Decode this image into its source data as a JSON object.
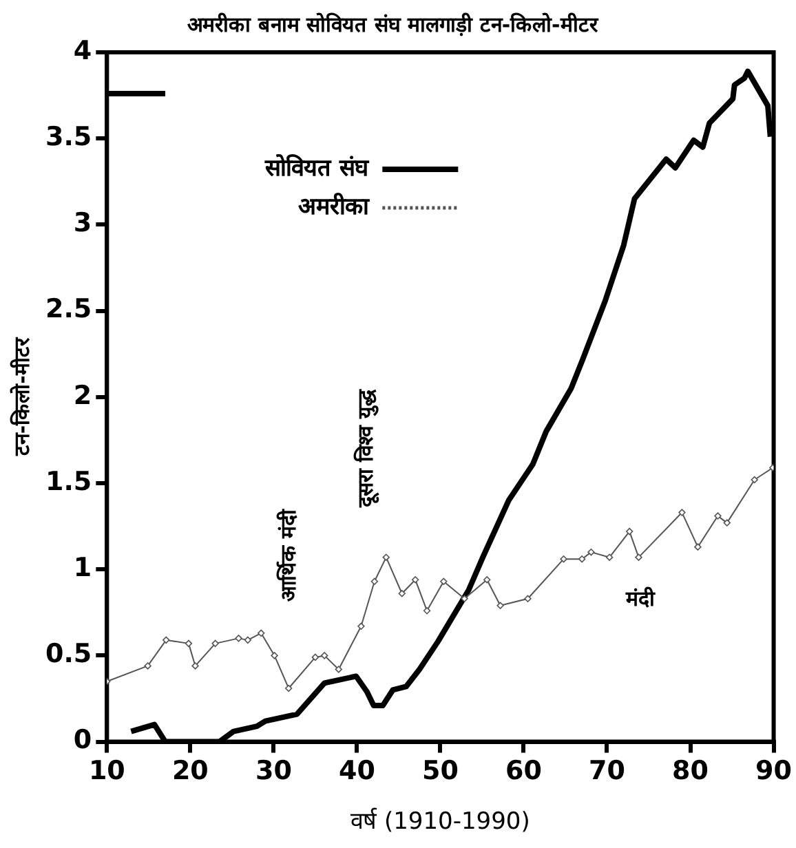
{
  "chart_data": {
    "type": "line",
    "title": "अमरीका बनाम सोवियत संघ मालगाड़ी टन-किलो-मीटर",
    "xlabel": "वर्ष (1910-1990)",
    "ylabel": "टन-किलो-मीटर",
    "xlim": [
      10,
      90
    ],
    "xticks": [
      10,
      20,
      30,
      40,
      50,
      60,
      70,
      80,
      90
    ],
    "ylim": [
      0,
      4
    ],
    "yticks": [
      0,
      0.5,
      1,
      1.5,
      2,
      2.5,
      3,
      3.5,
      4
    ],
    "grid": false,
    "legend": "top left",
    "series": [
      {
        "name": "सोवियत संघ",
        "color": "#000000",
        "marker": "none",
        "x": [
          12.9,
          15.7,
          17,
          23.5,
          25.2,
          28,
          29,
          32.8,
          36.1,
          39.9,
          41.2,
          42,
          43.1,
          44.3,
          45.9,
          47.5,
          49.7,
          53.4,
          55.1,
          58.2,
          61.1,
          62.7,
          65.7,
          67.1,
          69.8,
          72,
          73.3,
          77.1,
          78.2,
          80.4,
          81.5,
          82.3,
          85.1,
          85.3,
          86.5,
          86.9,
          89.3,
          89.6
        ],
        "values": [
          0.06,
          0.1,
          0,
          0,
          0.06,
          0.09,
          0.12,
          0.16,
          0.34,
          0.38,
          0.29,
          0.21,
          0.21,
          0.3,
          0.32,
          0.42,
          0.58,
          0.88,
          1.07,
          1.4,
          1.61,
          1.8,
          2.05,
          2.22,
          2.56,
          2.88,
          3.15,
          3.38,
          3.33,
          3.49,
          3.45,
          3.59,
          3.73,
          3.81,
          3.85,
          3.89,
          3.69,
          3.51
        ]
      },
      {
        "name": "अमरीका",
        "color": "#555555",
        "marker": "diamond",
        "x": [
          10,
          14.9,
          17.1,
          19.8,
          20.6,
          23,
          25.8,
          26.9,
          28.5,
          30.1,
          31.8,
          35,
          36.1,
          37.8,
          40.5,
          42.1,
          43.5,
          45.4,
          47,
          48.4,
          50.4,
          52.9,
          55.6,
          57.2,
          60.5,
          64.8,
          67,
          68.1,
          70.3,
          72.7,
          73.8,
          79,
          80.9,
          83.3,
          84.4,
          87.7,
          89.9
        ],
        "values": [
          0.35,
          0.44,
          0.59,
          0.57,
          0.44,
          0.57,
          0.6,
          0.59,
          0.63,
          0.5,
          0.31,
          0.49,
          0.5,
          0.42,
          0.67,
          0.93,
          1.07,
          0.86,
          0.94,
          0.76,
          0.93,
          0.83,
          0.94,
          0.79,
          0.83,
          1.06,
          1.06,
          1.1,
          1.07,
          1.22,
          1.07,
          1.33,
          1.13,
          1.31,
          1.27,
          1.52,
          1.59
        ]
      },
      {
        "color": "#000000",
        "marker": "none",
        "x": [
          10,
          17
        ],
        "values": [
          3.76,
          3.76
        ]
      }
    ],
    "annotations": [
      "आर्थिक मंदी",
      "दूसरा विश्व युद्ध",
      "मंदी"
    ]
  }
}
